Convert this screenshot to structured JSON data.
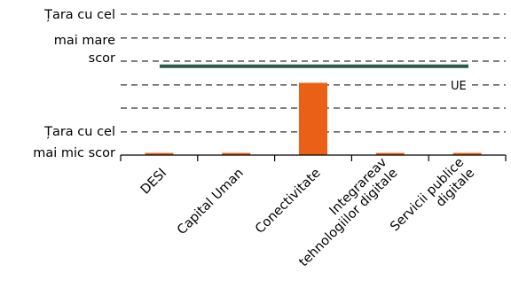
{
  "chart_data": {
    "type": "bar",
    "categories": [
      "DESI",
      "Capital Uman",
      "Conectivitate",
      "Integrareav tehnologiilor digitale",
      "Servicii publice digitale"
    ],
    "category_lines": [
      [
        "DESI"
      ],
      [
        "Capital Uman"
      ],
      [
        "Conectivitate"
      ],
      [
        "Integrareav",
        "tehnologiilor digitale"
      ],
      [
        "Servicii publice",
        "digitale"
      ]
    ],
    "series": [
      {
        "values": [
          0.03,
          0.03,
          1.0,
          0.03,
          0.03
        ]
      }
    ],
    "ylim": [
      0,
      1.95
    ],
    "gridlines": [
      0.32,
      0.65,
      0.97,
      1.3,
      1.62,
      1.95
    ],
    "reference_line": {
      "label": "UE",
      "value": 1.23
    },
    "y_annotations": {
      "top": [
        "Țara cu cel",
        "mai mare",
        "scor"
      ],
      "bottom": [
        "Țara cu cel",
        "mai mic scor"
      ]
    },
    "colors": {
      "bar": "#ea6016",
      "reference": "#29594a",
      "grid": "#333333"
    }
  }
}
